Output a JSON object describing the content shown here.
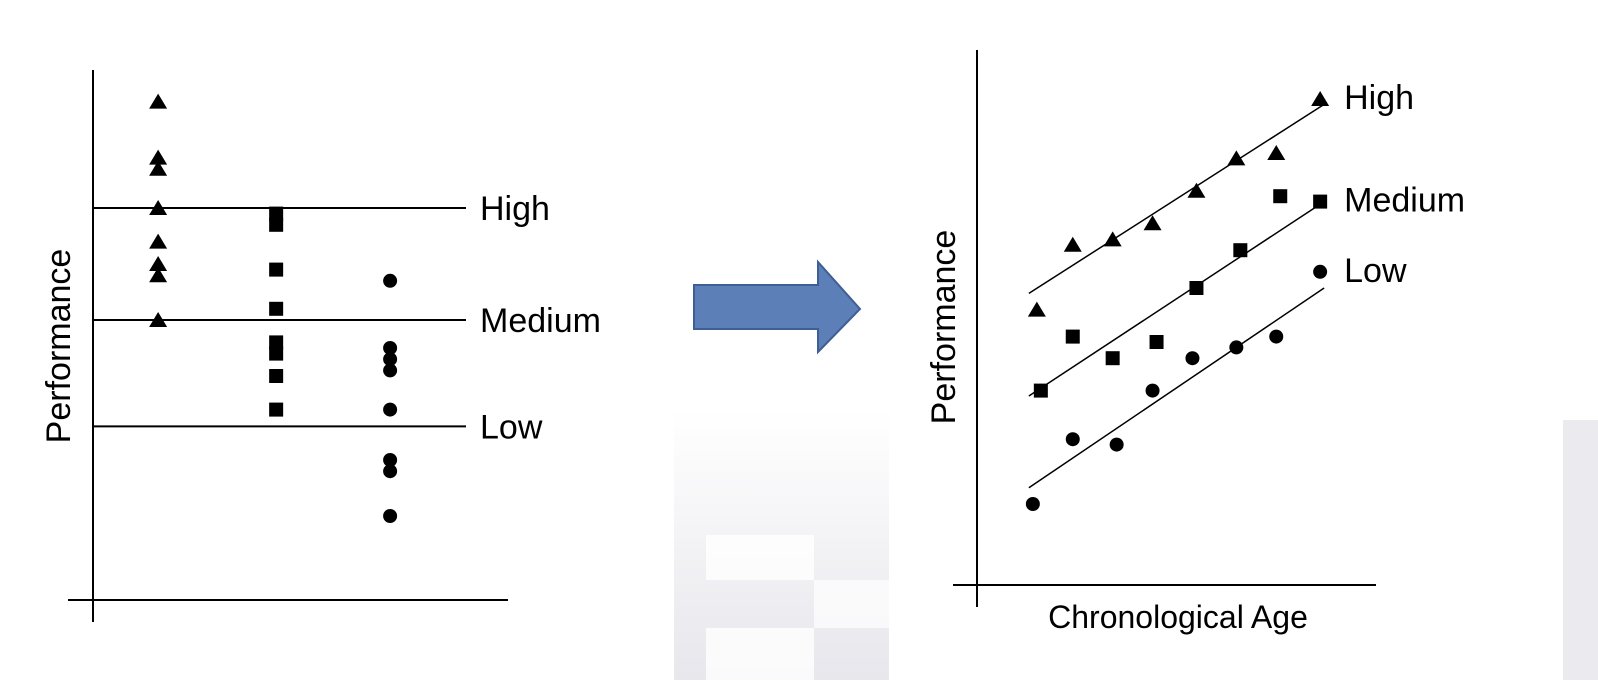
{
  "chart_data": [
    {
      "type": "scatter",
      "title": "",
      "xlabel": "",
      "ylabel": "Performance",
      "xlim": [
        0,
        10
      ],
      "ylim": [
        0,
        10
      ],
      "grid": false,
      "reference_lines": [
        {
          "label": "High",
          "y": 7
        },
        {
          "label": "Medium",
          "y": 5
        },
        {
          "label": "Low",
          "y": 3.1
        }
      ],
      "series": [
        {
          "marker": "triangle",
          "x": [
            1.6,
            1.6,
            1.6,
            1.6,
            1.6,
            1.6,
            1.6,
            1.6
          ],
          "y": [
            8.9,
            7.9,
            7.7,
            7.0,
            6.4,
            6.0,
            5.8,
            5.0
          ]
        },
        {
          "marker": "square",
          "x": [
            4.5,
            4.5,
            4.5,
            4.5,
            4.5,
            4.5,
            4.5,
            4.5
          ],
          "y": [
            6.9,
            6.7,
            5.9,
            5.2,
            4.6,
            4.4,
            4.0,
            3.4
          ]
        },
        {
          "marker": "circle",
          "x": [
            7.3,
            7.3,
            7.3,
            7.3,
            7.3,
            7.3,
            7.3,
            7.3
          ],
          "y": [
            5.7,
            4.5,
            4.3,
            4.1,
            3.4,
            2.5,
            2.3,
            1.5
          ]
        }
      ]
    },
    {
      "type": "scatter",
      "title": "",
      "xlabel": "Chronological Age",
      "ylabel": "Performance",
      "xlim": [
        0,
        10
      ],
      "ylim": [
        0,
        10
      ],
      "grid": false,
      "series": [
        {
          "name": "High",
          "marker": "triangle",
          "x": [
            1.5,
            2.4,
            3.4,
            4.4,
            5.5,
            6.5,
            7.5,
            8.6
          ],
          "y": [
            5.1,
            6.3,
            6.4,
            6.7,
            7.3,
            7.9,
            8.0,
            9.0
          ],
          "trend": [
            [
              1.3,
              5.4
            ],
            [
              8.7,
              8.9
            ]
          ]
        },
        {
          "name": "Medium",
          "marker": "square",
          "x": [
            1.6,
            2.4,
            3.4,
            4.5,
            5.5,
            6.6,
            7.6,
            8.6
          ],
          "y": [
            3.6,
            4.6,
            4.2,
            4.5,
            5.5,
            6.2,
            7.2,
            7.1
          ],
          "trend": [
            [
              1.3,
              3.5
            ],
            [
              8.7,
              7.1
            ]
          ]
        },
        {
          "name": "Low",
          "marker": "circle",
          "x": [
            1.4,
            2.4,
            3.5,
            4.4,
            5.4,
            6.5,
            7.5,
            8.6
          ],
          "y": [
            1.5,
            2.7,
            2.6,
            3.6,
            4.2,
            4.4,
            4.6,
            5.8
          ],
          "trend": [
            [
              1.3,
              1.8
            ],
            [
              8.7,
              5.5
            ]
          ]
        }
      ]
    }
  ],
  "arrow": {
    "color": "#5b7fb6",
    "stroke": "#3e5f94"
  }
}
